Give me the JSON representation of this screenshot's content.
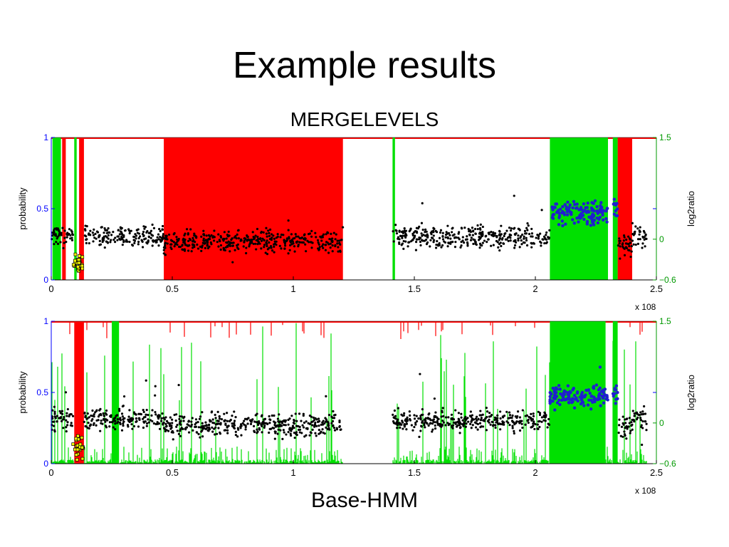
{
  "slide": {
    "title": "Example results",
    "top_caption": "MERGELEVELS",
    "bottom_caption": "Base-HMM"
  },
  "colors": {
    "gain": "#00e000",
    "loss": "#ff0000",
    "points": "#000000",
    "points_high": "#1f1fcf",
    "points_low_fill": "#ffff00",
    "left_axis": "#0000ff",
    "right_axis": "#009900"
  },
  "chart_data": [
    {
      "type": "scatter",
      "title": "MERGELEVELS",
      "xlabel": "",
      "x_multiplier": "x 10^8",
      "ylabel_left": "probability",
      "ylabel_right": "log2ratio",
      "xlim": [
        0,
        2.5
      ],
      "ylim_left": [
        0,
        1
      ],
      "ylim_right": [
        -0.6,
        1.5
      ],
      "x_ticks": [
        "0",
        "0.5",
        "1",
        "1.5",
        "2",
        "2.5"
      ],
      "y_ticks_left": [
        "0",
        "0.5",
        "1"
      ],
      "y_ticks_right": [
        "-0.6",
        "0",
        "1.5"
      ],
      "loss_regions": [
        [
          0.045,
          0.06
        ],
        [
          0.115,
          0.135
        ],
        [
          0.465,
          1.205
        ],
        [
          2.34,
          2.4
        ]
      ],
      "gain_regions": [
        [
          0.005,
          0.04
        ],
        [
          0.095,
          0.105
        ],
        [
          1.41,
          1.42
        ],
        [
          2.06,
          2.3
        ],
        [
          2.32,
          2.34
        ]
      ],
      "noise_regions": [],
      "data_gap": [
        1.205,
        1.41
      ],
      "segments": [
        {
          "x0": 0.0,
          "x1": 0.09,
          "log2": 0.05,
          "color": "black"
        },
        {
          "x0": 0.09,
          "x1": 0.135,
          "log2": -0.35,
          "color": "yellow"
        },
        {
          "x0": 0.135,
          "x1": 0.465,
          "log2": 0.05,
          "color": "black"
        },
        {
          "x0": 0.465,
          "x1": 1.205,
          "log2": -0.03,
          "color": "black"
        },
        {
          "x0": 1.41,
          "x1": 2.06,
          "log2": 0.03,
          "color": "black"
        },
        {
          "x0": 2.06,
          "x1": 2.3,
          "log2": 0.4,
          "color": "blue"
        },
        {
          "x0": 2.32,
          "x1": 2.34,
          "log2": 0.45,
          "color": "blue"
        },
        {
          "x0": 2.34,
          "x1": 2.4,
          "log2": -0.07,
          "color": "black"
        },
        {
          "x0": 2.4,
          "x1": 2.46,
          "log2": 0.05,
          "color": "black"
        }
      ]
    },
    {
      "type": "scatter",
      "title": "Base-HMM",
      "xlabel": "",
      "x_multiplier": "x 10^8",
      "ylabel_left": "probability",
      "ylabel_right": "log2ratio",
      "xlim": [
        0,
        2.5
      ],
      "ylim_left": [
        0,
        1
      ],
      "ylim_right": [
        -0.6,
        1.5
      ],
      "x_ticks": [
        "0",
        "0.5",
        "1",
        "1.5",
        "2",
        "2.5"
      ],
      "y_ticks_left": [
        "0",
        "0.5",
        "1"
      ],
      "y_ticks_right": [
        "-0.6",
        "0",
        "1.5"
      ],
      "loss_regions": [
        [
          0.095,
          0.135
        ]
      ],
      "gain_regions": [
        [
          0.25,
          0.28
        ],
        [
          2.06,
          2.29
        ],
        [
          2.32,
          2.34
        ]
      ],
      "noise_regions": [
        [
          0.0,
          1.205
        ],
        [
          1.41,
          2.46
        ]
      ],
      "data_gap": [
        1.205,
        1.41
      ],
      "segments": [
        {
          "x0": 0.0,
          "x1": 0.09,
          "log2": 0.05,
          "color": "black"
        },
        {
          "x0": 0.09,
          "x1": 0.135,
          "log2": -0.35,
          "color": "yellow"
        },
        {
          "x0": 0.135,
          "x1": 0.465,
          "log2": 0.05,
          "color": "black"
        },
        {
          "x0": 0.465,
          "x1": 1.205,
          "log2": -0.03,
          "color": "black"
        },
        {
          "x0": 1.41,
          "x1": 2.06,
          "log2": 0.03,
          "color": "black"
        },
        {
          "x0": 2.06,
          "x1": 2.3,
          "log2": 0.4,
          "color": "blue"
        },
        {
          "x0": 2.32,
          "x1": 2.34,
          "log2": 0.45,
          "color": "blue"
        },
        {
          "x0": 2.34,
          "x1": 2.4,
          "log2": -0.07,
          "color": "black"
        },
        {
          "x0": 2.4,
          "x1": 2.46,
          "log2": 0.05,
          "color": "black"
        }
      ]
    }
  ]
}
